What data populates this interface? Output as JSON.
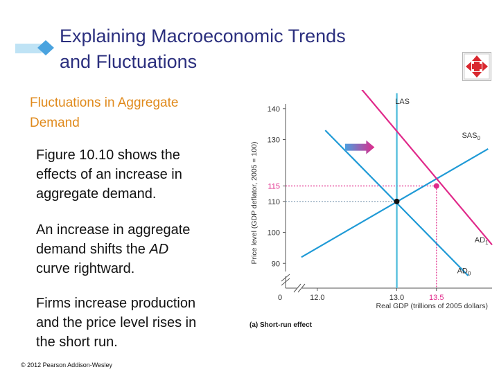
{
  "slide": {
    "title_line1": "Explaining Macroeconomic Trends",
    "title_line2": "and Fluctuations",
    "subheading_line1": "Fluctuations in Aggregate",
    "subheading_line2": "Demand",
    "paragraph1_line1": "Figure 10.10 shows the",
    "paragraph1_line2": "effects of an increase in",
    "paragraph1_line3": "aggregate demand.",
    "paragraph2_line1": "An increase in aggregate",
    "paragraph2_line2": "demand shifts the ",
    "paragraph2_em": "AD",
    "paragraph2_line3": "curve rightward.",
    "paragraph3_line1": "Firms increase production",
    "paragraph3_line2": "and the price level rises in",
    "paragraph3_line3": "the short run.",
    "copyright": "© 2012 Pearson Addison-Wesley",
    "colors": {
      "title": "#2b2f7e",
      "subheading": "#e08a1c",
      "accent_icon": "#4aa3df",
      "nav_icon": "#d9272e"
    },
    "icons": {
      "title_marker": "diamond-icon",
      "navigation": "four-arrows-icon"
    }
  },
  "chart_data": {
    "type": "line",
    "ylabel": "Price level (GDP deflator, 2005 = 100)",
    "xlabel": "Real GDP (trillions of 2005 dollars)",
    "caption": "(a) Short-run effect",
    "xlim": [
      11.6,
      14.2
    ],
    "ylim": [
      82,
      146
    ],
    "x_ticks": [
      {
        "value": 12.0,
        "label": "12.0",
        "color": "#333333"
      },
      {
        "value": 13.0,
        "label": "13.0",
        "color": "#333333"
      },
      {
        "value": 13.5,
        "label": "13.5",
        "color": "#e0298a"
      }
    ],
    "y_ticks": [
      {
        "value": 90,
        "label": "90",
        "color": "#333333"
      },
      {
        "value": 100,
        "label": "100",
        "color": "#333333"
      },
      {
        "value": 110,
        "label": "110",
        "color": "#333333"
      },
      {
        "value": 115,
        "label": "115",
        "color": "#e0298a"
      },
      {
        "value": 130,
        "label": "130",
        "color": "#333333"
      },
      {
        "value": 140,
        "label": "140",
        "color": "#333333"
      }
    ],
    "origin_label": "0",
    "series": [
      {
        "name": "LAS",
        "color": "#5bc0de",
        "width": 2.5,
        "points": [
          [
            13.0,
            145
          ],
          [
            13.0,
            82
          ]
        ]
      },
      {
        "name": "SAS",
        "sub": "0",
        "color": "#1f9ad6",
        "width": 2.2,
        "points": [
          [
            11.8,
            92
          ],
          [
            14.15,
            127
          ]
        ]
      },
      {
        "name": "AD",
        "sub": "0",
        "color": "#1f9ad6",
        "width": 2.2,
        "points": [
          [
            12.1,
            133
          ],
          [
            13.9,
            86
          ]
        ]
      },
      {
        "name": "AD",
        "sub": "1",
        "color": "#e0298a",
        "width": 2.2,
        "points": [
          [
            12.55,
            146.5
          ],
          [
            14.2,
            96
          ]
        ]
      }
    ],
    "equilibria": [
      {
        "x": 13.0,
        "y": 110,
        "color": "#111111",
        "guide_color": "#8aa3b8"
      },
      {
        "x": 13.5,
        "y": 115,
        "color": "#e0298a",
        "guide_color": "#e0298a"
      }
    ],
    "shift_arrow": {
      "from_x": 12.35,
      "to_x": 12.72,
      "y": 127.5
    },
    "series_labels": [
      {
        "series": 0,
        "x": 12.98,
        "y": 141.5,
        "anchor": "start"
      },
      {
        "series": 1,
        "x": 13.82,
        "y": 130.6,
        "anchor": "start"
      },
      {
        "series": 2,
        "x": 13.76,
        "y": 86.8,
        "anchor": "start"
      },
      {
        "series": 3,
        "x": 13.98,
        "y": 96.8,
        "anchor": "start"
      }
    ]
  }
}
